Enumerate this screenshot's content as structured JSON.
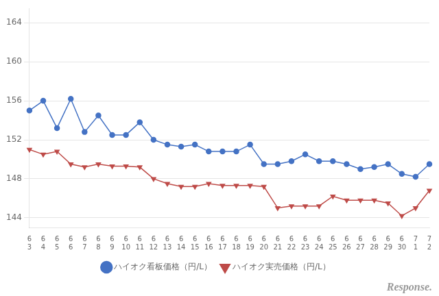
{
  "chart_data": {
    "type": "line",
    "categories": [
      "6\n3",
      "6\n4",
      "6\n5",
      "6\n6",
      "6\n7",
      "6\n8",
      "6\n9",
      "6\n10",
      "6\n11",
      "6\n12",
      "6\n13",
      "6\n14",
      "6\n15",
      "6\n16",
      "6\n17",
      "6\n18",
      "6\n19",
      "6\n20",
      "6\n21",
      "6\n22",
      "6\n23",
      "6\n24",
      "6\n25",
      "6\n26",
      "6\n27",
      "6\n28",
      "6\n29",
      "6\n30",
      "7\n1",
      "7\n2"
    ],
    "series": [
      {
        "name": "ハイオク看板価格（円/L）",
        "color": "#4472C4",
        "marker": "circle",
        "values": [
          155.0,
          156.0,
          153.2,
          156.2,
          152.8,
          154.5,
          152.5,
          152.5,
          153.8,
          152.0,
          151.5,
          151.3,
          151.5,
          150.8,
          150.8,
          150.8,
          151.5,
          149.5,
          149.5,
          149.8,
          150.5,
          149.8,
          149.8,
          149.5,
          149.0,
          149.2,
          149.5,
          148.5,
          148.2,
          149.5
        ]
      },
      {
        "name": "ハイオク実売価格（円/L）",
        "color": "#BE4B48",
        "marker": "triangle_down",
        "values": [
          151.0,
          150.5,
          150.8,
          149.5,
          149.2,
          149.5,
          149.3,
          149.3,
          149.2,
          148.0,
          147.5,
          147.2,
          147.2,
          147.5,
          147.3,
          147.3,
          147.3,
          147.2,
          145.0,
          145.2,
          145.2,
          145.2,
          146.2,
          145.8,
          145.8,
          145.8,
          145.5,
          144.2,
          145.0,
          146.8
        ]
      }
    ],
    "ylim": [
      143,
      165.5
    ],
    "yticks": [
      144,
      148,
      152,
      156,
      160,
      164
    ],
    "grid": true,
    "legend": "bottom",
    "annotation": "Response."
  }
}
